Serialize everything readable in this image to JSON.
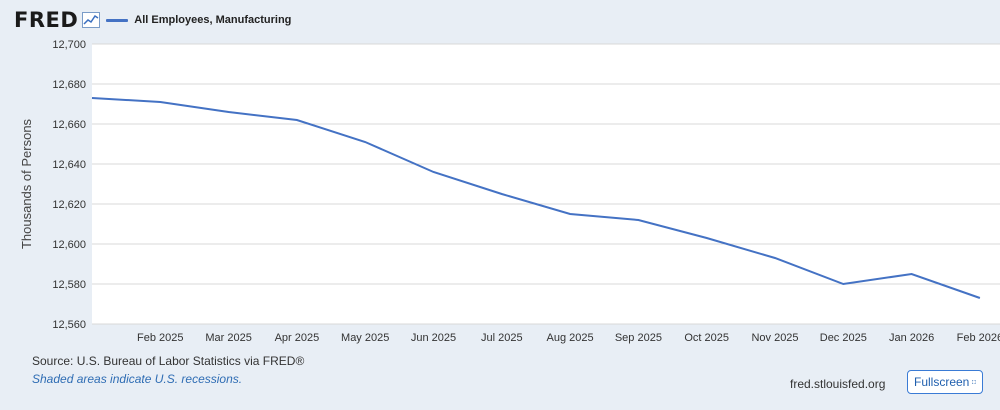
{
  "header": {
    "logo": "FRED",
    "legend_label": "All Employees, Manufacturing"
  },
  "colors": {
    "series": "#4472c4",
    "grid": "#d8d8d8",
    "plot_bg": "#ffffff",
    "frame_bg": "#e8eef5",
    "link": "#2f6db4"
  },
  "icons": {
    "logo_icon": "line-chart-icon",
    "fullscreen_icon": "expand-icon"
  },
  "footer": {
    "source": "Source: U.S. Bureau of Labor Statistics via FRED®",
    "note": "Shaded areas indicate U.S. recessions.",
    "site": "fred.stlouisfed.org",
    "fullscreen_label": "Fullscreen"
  },
  "chart_data": {
    "type": "line",
    "title": "",
    "xlabel": "",
    "ylabel": "Thousands of Persons",
    "ylim": [
      12560,
      12700
    ],
    "yticks": [
      12560,
      12580,
      12600,
      12620,
      12640,
      12660,
      12680,
      12700
    ],
    "ytick_labels": [
      "12,560",
      "12,580",
      "12,600",
      "12,620",
      "12,640",
      "12,660",
      "12,680",
      "12,700"
    ],
    "x": [
      "2025-01",
      "2025-02",
      "2025-03",
      "2025-04",
      "2025-05",
      "2025-06",
      "2025-07",
      "2025-08",
      "2025-09",
      "2025-10",
      "2025-11",
      "2025-12",
      "2026-01",
      "2026-02"
    ],
    "xtick_labels": [
      "Feb 2025",
      "Mar 2025",
      "Apr 2025",
      "May 2025",
      "Jun 2025",
      "Jul 2025",
      "Aug 2025",
      "Sep 2025",
      "Oct 2025",
      "Nov 2025",
      "Dec 2025",
      "Jan 2026",
      "Feb 2026"
    ],
    "series": [
      {
        "name": "All Employees, Manufacturing",
        "values": [
          12673,
          12671,
          12666,
          12662,
          12651,
          12636,
          12625,
          12615,
          12612,
          12603,
          12593,
          12580,
          12585,
          12573
        ]
      }
    ],
    "grid": true,
    "legend": "top-left"
  }
}
